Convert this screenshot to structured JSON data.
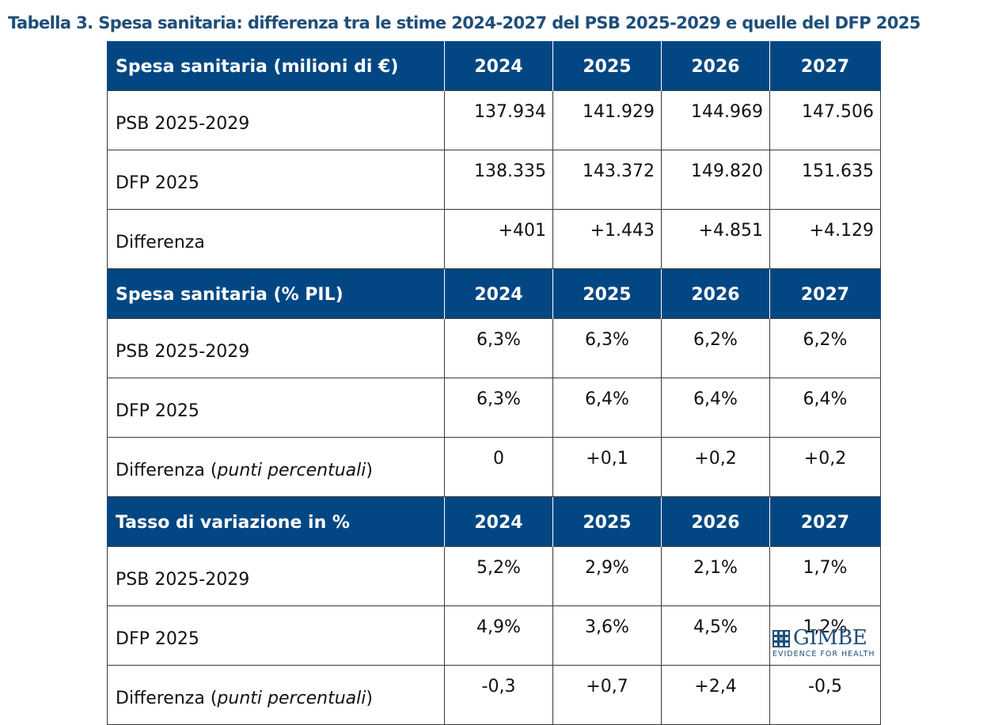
{
  "title": "Tabella 3. Spesa sanitaria: differenza tra le stime 2024-2027 del PSB 2025-2029 e quelle del DFP 2025",
  "sections": [
    {
      "header": "Spesa sanitaria (milioni di €)",
      "years": [
        "2024",
        "2025",
        "2026",
        "2027"
      ],
      "align": "num",
      "rows": [
        {
          "label": "PSB 2025-2029",
          "values": [
            "137.934",
            "141.929",
            "144.969",
            "147.506"
          ]
        },
        {
          "label": "DFP 2025",
          "values": [
            "138.335",
            "143.372",
            "149.820",
            "151.635"
          ]
        },
        {
          "label": "Differenza",
          "values": [
            "+401",
            "+1.443",
            "+4.851",
            "+4.129"
          ]
        }
      ]
    },
    {
      "header": "Spesa sanitaria (% PIL)",
      "years": [
        "2024",
        "2025",
        "2026",
        "2027"
      ],
      "align": "ctr",
      "rows": [
        {
          "label": "PSB 2025-2029",
          "values": [
            "6,3%",
            "6,3%",
            "6,2%",
            "6,2%"
          ]
        },
        {
          "label": "DFP 2025",
          "values": [
            "6,3%",
            "6,4%",
            "6,4%",
            "6,4%"
          ]
        },
        {
          "label": "Differenza",
          "label_italic": "punti percentuali",
          "values": [
            "0",
            "+0,1",
            "+0,2",
            "+0,2"
          ]
        }
      ]
    },
    {
      "header": "Tasso di variazione in %",
      "years": [
        "2024",
        "2025",
        "2026",
        "2027"
      ],
      "align": "ctr",
      "rows": [
        {
          "label": "PSB 2025-2029",
          "values": [
            "5,2%",
            "2,9%",
            "2,1%",
            "1,7%"
          ]
        },
        {
          "label": "DFP 2025",
          "values": [
            "4,9%",
            "3,6%",
            "4,5%",
            "1,2%"
          ]
        },
        {
          "label": "Differenza",
          "label_italic": "punti percentuali",
          "values": [
            "-0,3",
            "+0,7",
            "+2,4",
            "-0,5"
          ]
        }
      ]
    }
  ],
  "logo": {
    "name": "GIMBE",
    "tagline": "EVIDENCE FOR HEALTH",
    "icon": "gimbe-grid-logo-icon",
    "color": "#1f4e79"
  },
  "colors": {
    "header_bg": "#024783",
    "title": "#1f4e79"
  }
}
